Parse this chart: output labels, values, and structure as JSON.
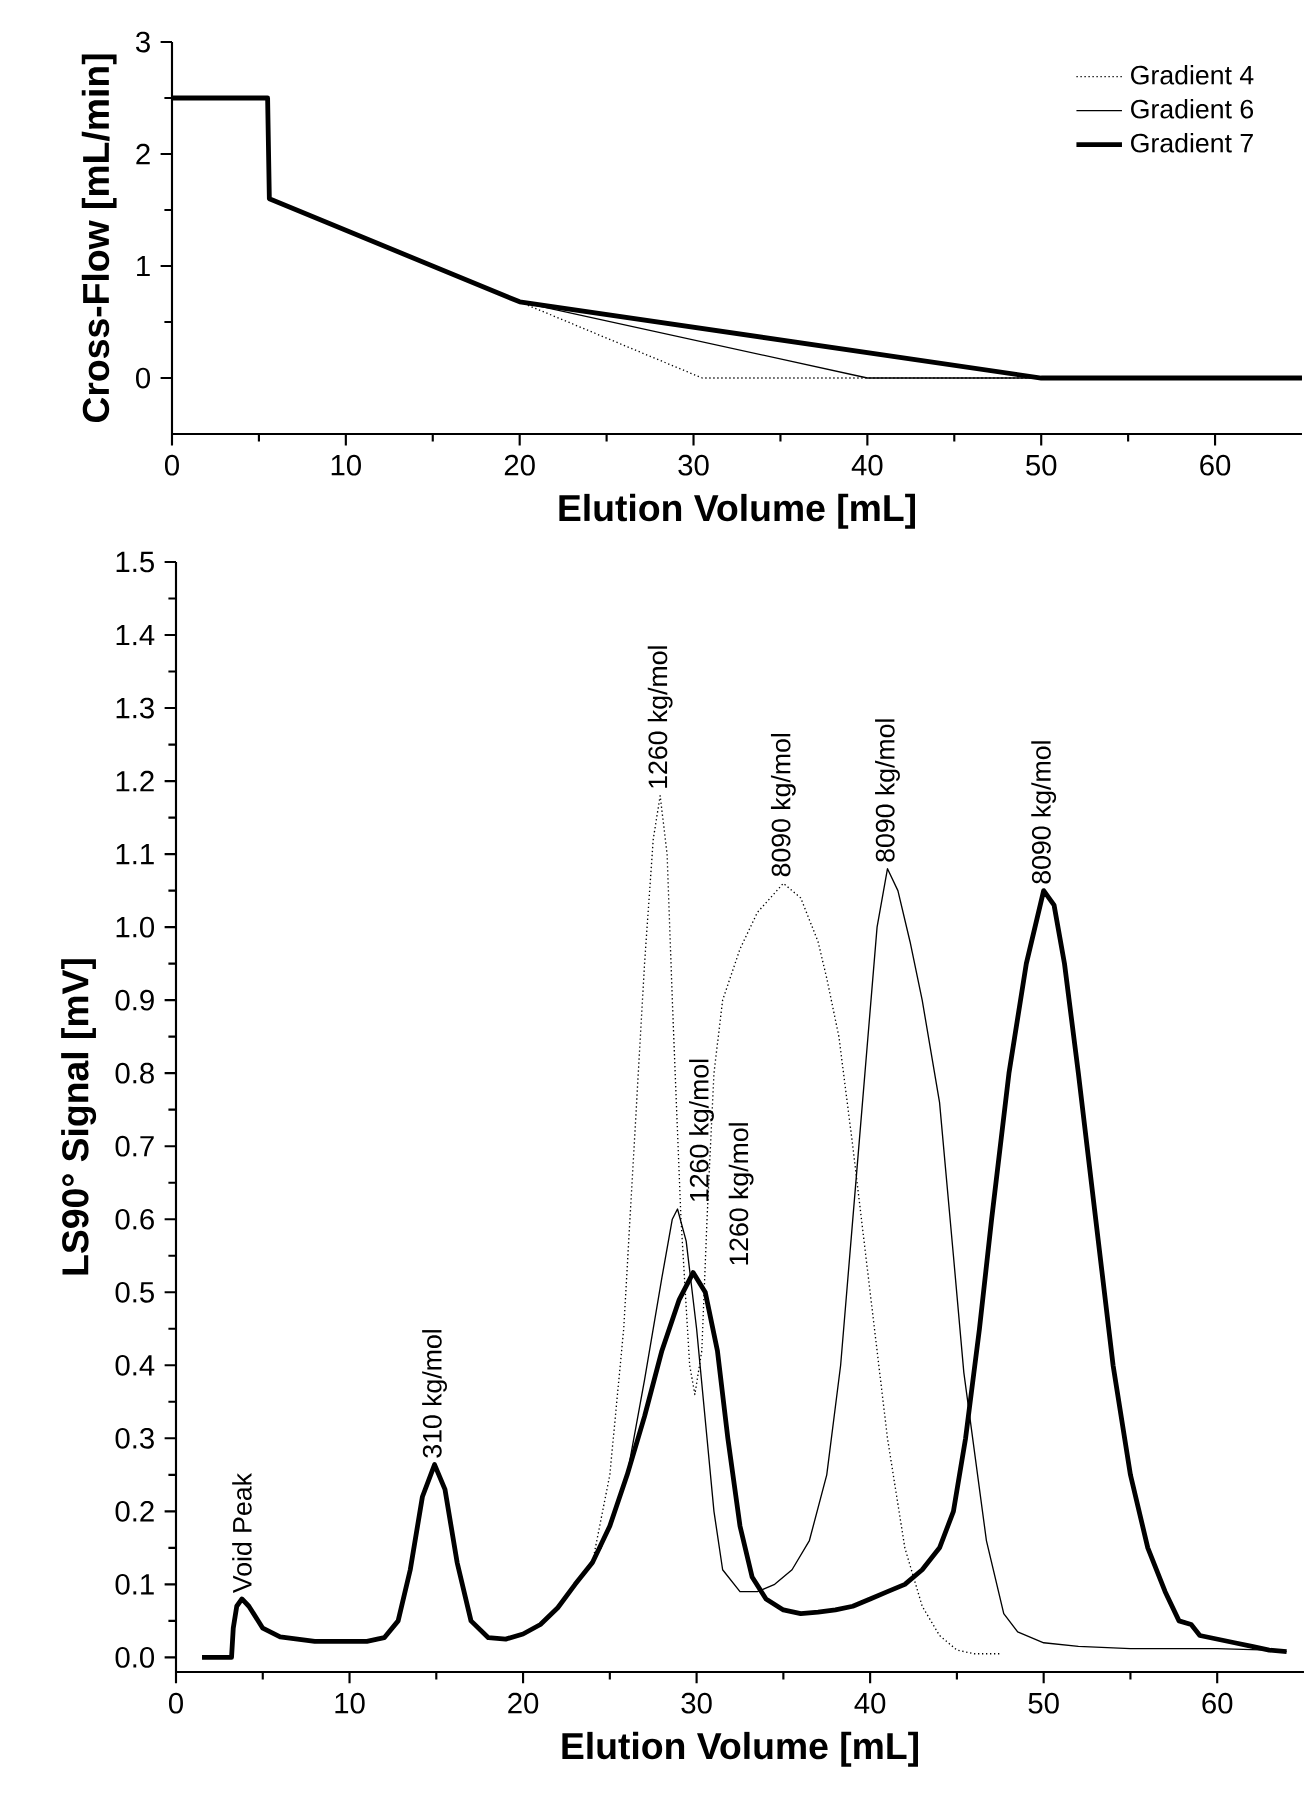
{
  "chart_data": [
    {
      "type": "line",
      "ylabel": "Cross-Flow [mL/min]",
      "xlabel": "Elution Volume [mL]",
      "xlim": [
        0,
        65
      ],
      "ylim": [
        -0.5,
        3
      ],
      "xticks": [
        0,
        10,
        20,
        30,
        40,
        50,
        60
      ],
      "yticks": [
        0,
        1,
        2,
        3
      ],
      "legend": "top right",
      "grid": false,
      "series": [
        {
          "name": "Gradient 4",
          "color": "#000000",
          "line_style": "dotted",
          "x": [
            0,
            5.5,
            5.6,
            20,
            30.5,
            65
          ],
          "values": [
            2.5,
            2.5,
            1.6,
            0.68,
            0,
            0
          ]
        },
        {
          "name": "Gradient 6",
          "color": "#000000",
          "line_style": "solid",
          "x": [
            0,
            5.5,
            5.6,
            20,
            40,
            65
          ],
          "values": [
            2.5,
            2.5,
            1.6,
            0.68,
            0,
            0
          ]
        },
        {
          "name": "Gradient 7",
          "color": "#000000",
          "line_style": "solid",
          "x": [
            0,
            5.5,
            5.6,
            20,
            50,
            65
          ],
          "values": [
            2.5,
            2.5,
            1.6,
            0.68,
            0,
            0
          ]
        }
      ]
    },
    {
      "type": "line",
      "ylabel": "LS90° Signal [mV]",
      "xlabel": "Elution Volume [mL]",
      "xlim": [
        0,
        65
      ],
      "ylim": [
        -0.02,
        1.5
      ],
      "xticks": [
        0,
        10,
        20,
        30,
        40,
        50,
        60
      ],
      "yticks": [
        {
          "value": 0,
          "label": "0.0"
        },
        0.1,
        0.2,
        0.3,
        0.4,
        0.5,
        0.6,
        0.7,
        0.8,
        0.9,
        {
          "value": 1,
          "label": "1.0"
        },
        1.1,
        1.2,
        1.3,
        1.4,
        1.5
      ],
      "legend": false,
      "grid": false,
      "series": [
        {
          "color": "#000000",
          "line_style": "dotted",
          "x": [
            1.5,
            3.2,
            3.3,
            3.5,
            3.8,
            4.2,
            5,
            6,
            7,
            8,
            9,
            10,
            11,
            12,
            12.8,
            13.5,
            14.2,
            14.9,
            15.5,
            16.2,
            17,
            18,
            19,
            20,
            21,
            22,
            23,
            24,
            25,
            25.8,
            26.4,
            27,
            27.5,
            27.9,
            28.3,
            28.6,
            29.1,
            29.6,
            29.9,
            30.3,
            30.6,
            31,
            31.5,
            32.5,
            33.5,
            35,
            36,
            37,
            37.5,
            38.2,
            39,
            40,
            41,
            42,
            43,
            44,
            45,
            46,
            47.5
          ],
          "values": [
            0,
            0,
            0.04,
            0.07,
            0.08,
            0.07,
            0.04,
            0.028,
            0.025,
            0.022,
            0.022,
            0.022,
            0.022,
            0.027,
            0.05,
            0.12,
            0.22,
            0.264,
            0.23,
            0.13,
            0.05,
            0.027,
            0.025,
            0.032,
            0.045,
            0.068,
            0.1,
            0.13,
            0.25,
            0.45,
            0.7,
            0.95,
            1.12,
            1.18,
            1.1,
            0.9,
            0.6,
            0.4,
            0.36,
            0.42,
            0.6,
            0.8,
            0.9,
            0.97,
            1.02,
            1.06,
            1.04,
            0.98,
            0.93,
            0.85,
            0.7,
            0.5,
            0.3,
            0.15,
            0.07,
            0.03,
            0.01,
            0.005,
            0.005
          ]
        },
        {
          "color": "#000000",
          "line_style": "solid",
          "x": [
            1.5,
            3.2,
            3.3,
            3.5,
            3.8,
            4.2,
            5,
            6,
            7,
            8,
            9,
            10,
            11,
            12,
            12.8,
            13.5,
            14.2,
            14.9,
            15.5,
            16.2,
            17,
            18,
            19,
            20,
            21,
            22,
            23,
            24.5,
            26,
            27,
            28,
            28.6,
            28.9,
            29.4,
            30,
            30.6,
            31,
            31.5,
            32.5,
            33.5,
            34.5,
            35.5,
            36.5,
            37.5,
            38.3,
            39,
            39.7,
            40.4,
            41,
            41.6,
            42.3,
            43,
            44,
            44.8,
            45.4,
            46.7,
            47.7,
            48.5,
            50,
            52,
            55,
            60,
            63,
            64
          ],
          "values": [
            0,
            0,
            0.04,
            0.07,
            0.08,
            0.07,
            0.04,
            0.028,
            0.025,
            0.022,
            0.022,
            0.022,
            0.022,
            0.027,
            0.05,
            0.12,
            0.22,
            0.264,
            0.23,
            0.13,
            0.05,
            0.027,
            0.025,
            0.032,
            0.045,
            0.068,
            0.1,
            0.15,
            0.25,
            0.38,
            0.52,
            0.6,
            0.614,
            0.57,
            0.45,
            0.3,
            0.2,
            0.12,
            0.09,
            0.09,
            0.1,
            0.12,
            0.16,
            0.25,
            0.4,
            0.6,
            0.8,
            1.0,
            1.08,
            1.05,
            0.98,
            0.9,
            0.76,
            0.55,
            0.39,
            0.16,
            0.06,
            0.035,
            0.02,
            0.015,
            0.012,
            0.012,
            0.01,
            0.008
          ]
        },
        {
          "color": "#000000",
          "line_style": "solid",
          "x": [
            1.5,
            3.2,
            3.3,
            3.5,
            3.8,
            4.2,
            5,
            6,
            7,
            8,
            9,
            10,
            11,
            12,
            12.8,
            13.5,
            14.2,
            14.9,
            15.5,
            16.2,
            17,
            18,
            19,
            20,
            21,
            22,
            23,
            24,
            25,
            26,
            27,
            28,
            29,
            29.8,
            30.5,
            31.2,
            31.8,
            32.5,
            33.2,
            34,
            35,
            36,
            37,
            38,
            39,
            40,
            41,
            42,
            43,
            44,
            44.8,
            45.5,
            46.3,
            47,
            48,
            49,
            50,
            50.6,
            51.2,
            52,
            53,
            54,
            55,
            56,
            57,
            57.8,
            58.5,
            59,
            60,
            61,
            62,
            63,
            64
          ],
          "values": [
            0,
            0,
            0.04,
            0.07,
            0.08,
            0.07,
            0.04,
            0.028,
            0.025,
            0.022,
            0.022,
            0.022,
            0.022,
            0.027,
            0.05,
            0.12,
            0.22,
            0.264,
            0.23,
            0.13,
            0.05,
            0.027,
            0.025,
            0.032,
            0.045,
            0.068,
            0.1,
            0.13,
            0.18,
            0.25,
            0.33,
            0.42,
            0.49,
            0.527,
            0.5,
            0.42,
            0.3,
            0.18,
            0.11,
            0.08,
            0.065,
            0.06,
            0.062,
            0.065,
            0.07,
            0.08,
            0.09,
            0.1,
            0.12,
            0.15,
            0.2,
            0.3,
            0.45,
            0.6,
            0.8,
            0.95,
            1.05,
            1.03,
            0.95,
            0.8,
            0.6,
            0.4,
            0.25,
            0.15,
            0.09,
            0.05,
            0.045,
            0.03,
            0.025,
            0.02,
            0.015,
            0.01,
            0.008
          ]
        }
      ],
      "annotations": [
        {
          "text": "Void Peak",
          "x": 3.8,
          "y": 0.08
        },
        {
          "text": "310 kg/mol",
          "x": 14.9,
          "y": 0.264
        },
        {
          "text": "1260 kg/mol",
          "x": 27.9,
          "y": 1.18
        },
        {
          "text": "1260 kg/mol",
          "x": 28.9,
          "y": 0.614
        },
        {
          "text": "1260 kg/mol",
          "x": 29.8,
          "y": 0.527
        },
        {
          "text": "8090 kg/mol",
          "x": 35,
          "y": 1.06
        },
        {
          "text": "8090 kg/mol",
          "x": 41,
          "y": 1.08
        },
        {
          "text": "8090 kg/mol",
          "x": 50,
          "y": 1.05
        }
      ]
    }
  ]
}
